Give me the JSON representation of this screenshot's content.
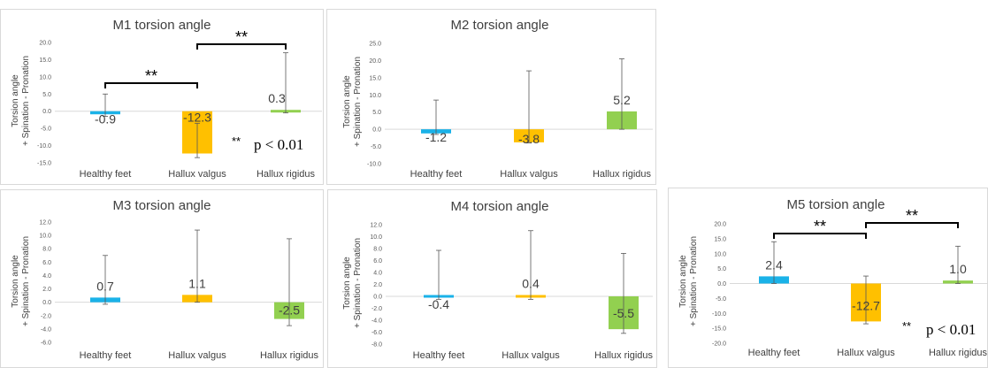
{
  "chart_data": [
    {
      "type": "bar",
      "title": "M1 torsion angle",
      "ylabel_top": "Torsion angle",
      "ylabel_bottom": "+ Spination    - Pronation",
      "categories": [
        "Healthy feet",
        "Hallux valgus",
        "Hallux rigidus"
      ],
      "values": [
        -0.9,
        -12.3,
        0.3
      ],
      "value_labels": [
        "-0.9",
        "-12.3",
        "0.3"
      ],
      "error_high": [
        5.0,
        -3.5,
        17.0
      ],
      "error_low": [
        -1.5,
        -13.5,
        -0.5
      ],
      "colors": [
        "#1ab2e8",
        "#ffc000",
        "#92d050"
      ],
      "ylim": [
        -15,
        20
      ],
      "yticks": [
        "20.0",
        "15.0",
        "10.0",
        "5.0",
        "0.0",
        "-5.0",
        "-10.0",
        "-15.0"
      ],
      "brackets": [
        {
          "from": 0,
          "to": 1,
          "label": "**"
        },
        {
          "from": 1,
          "to": 2,
          "label": "**"
        }
      ],
      "note_stars": "**",
      "note_text": "p < 0.01"
    },
    {
      "type": "bar",
      "title": "M2 torsion angle",
      "ylabel_top": "Torsion angle",
      "ylabel_bottom": "+ Spination    - Pronation",
      "categories": [
        "Healthy feet",
        "Hallux valgus",
        "Hallux rigidus"
      ],
      "values": [
        -1.2,
        -3.8,
        5.2
      ],
      "value_labels": [
        "-1.2",
        "-3.8",
        "5.2"
      ],
      "error_high": [
        8.5,
        17.0,
        20.5
      ],
      "error_low": [
        -1.5,
        -4.0,
        0.0
      ],
      "colors": [
        "#1ab2e8",
        "#ffc000",
        "#92d050"
      ],
      "ylim": [
        -10,
        25
      ],
      "yticks": [
        "25.0",
        "20.0",
        "15.0",
        "10.0",
        "5.0",
        "0.0",
        "-5.0",
        "-10.0"
      ],
      "brackets": [],
      "note_stars": "",
      "note_text": ""
    },
    {
      "type": "bar",
      "title": "M3 torsion angle",
      "ylabel_top": "Torsion angle",
      "ylabel_bottom": "+ Spination    - Pronation",
      "categories": [
        "Healthy feet",
        "Hallux valgus",
        "Hallux rigidus"
      ],
      "values": [
        0.7,
        1.1,
        -2.5
      ],
      "value_labels": [
        "0.7",
        "1.1",
        "-2.5"
      ],
      "error_high": [
        7.0,
        10.8,
        9.5
      ],
      "error_low": [
        -0.3,
        0.0,
        -3.5
      ],
      "colors": [
        "#1ab2e8",
        "#ffc000",
        "#92d050"
      ],
      "ylim": [
        -6,
        12
      ],
      "yticks": [
        "12.0",
        "10.0",
        "8.0",
        "6.0",
        "4.0",
        "2.0",
        "0.0",
        "-2.0",
        "-4.0",
        "-6.0"
      ],
      "brackets": [],
      "note_stars": "",
      "note_text": ""
    },
    {
      "type": "bar",
      "title": "M4 torsion angle",
      "ylabel_top": "Torsion angle",
      "ylabel_bottom": "+ Spination    - Pronation",
      "categories": [
        "Healthy feet",
        "Hallux valgus",
        "Hallux rigidus"
      ],
      "values": [
        -0.4,
        0.4,
        -5.5
      ],
      "value_labels": [
        "-0.4",
        "0.4",
        "-5.5"
      ],
      "error_high": [
        7.7,
        11.0,
        7.2
      ],
      "error_low": [
        -0.5,
        -0.5,
        -6.2
      ],
      "colors": [
        "#1ab2e8",
        "#ffc000",
        "#92d050"
      ],
      "ylim": [
        -8,
        12
      ],
      "yticks": [
        "12.0",
        "10.0",
        "8.0",
        "6.0",
        "4.0",
        "2.0",
        "0.0",
        "-2.0",
        "-4.0",
        "-6.0",
        "-8.0"
      ],
      "brackets": [],
      "note_stars": "",
      "note_text": ""
    },
    {
      "type": "bar",
      "title": "M5 torsion angle",
      "ylabel_top": "Torsion angle",
      "ylabel_bottom": "+ Spination    - Pronation",
      "categories": [
        "Healthy feet",
        "Hallux valgus",
        "Hallux rigidus"
      ],
      "values": [
        2.4,
        -12.7,
        1.0
      ],
      "value_labels": [
        "2.4",
        "-12.7",
        "1.0"
      ],
      "error_high": [
        14.0,
        2.5,
        12.5
      ],
      "error_low": [
        0.0,
        -13.5,
        0.0
      ],
      "colors": [
        "#1ab2e8",
        "#ffc000",
        "#92d050"
      ],
      "ylim": [
        -20,
        20
      ],
      "yticks": [
        "20.0",
        "15.0",
        "10.0",
        "5.0",
        "0.0",
        "-5.0",
        "-10.0",
        "-15.0",
        "-20.0"
      ],
      "brackets": [
        {
          "from": 0,
          "to": 1,
          "label": "**"
        },
        {
          "from": 1,
          "to": 2,
          "label": "**"
        }
      ],
      "note_stars": "**",
      "note_text": "p < 0.01"
    }
  ]
}
